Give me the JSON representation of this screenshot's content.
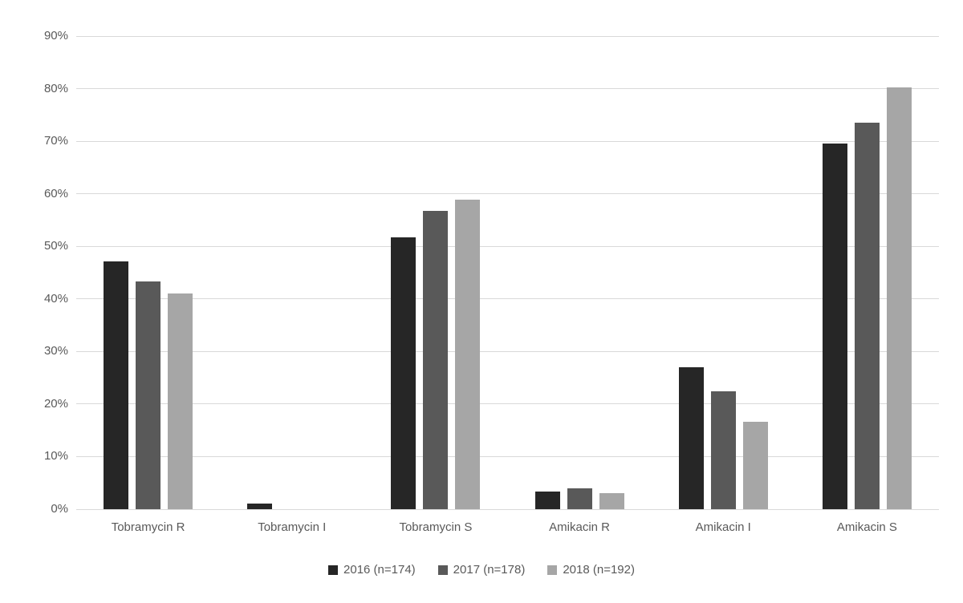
{
  "chart_data": {
    "type": "bar",
    "title": "",
    "categories": [
      "Tobramycin R",
      "Tobramycin I",
      "Tobramycin S",
      "Amikacin R",
      "Amikacin I",
      "Amikacin S"
    ],
    "series": [
      {
        "name": "2016 (n=174)",
        "color": "#262626",
        "values": [
          47.1,
          1.1,
          51.7,
          3.4,
          27.0,
          69.5
        ]
      },
      {
        "name": "2017 (n=178)",
        "color": "#595959",
        "values": [
          43.3,
          0,
          56.7,
          3.9,
          22.5,
          73.6
        ]
      },
      {
        "name": "2018 (n=192)",
        "color": "#a6a6a6",
        "values": [
          41.1,
          0,
          58.9,
          3.1,
          16.7,
          80.2
        ]
      }
    ],
    "ylim": [
      0,
      90
    ],
    "ytick_step": 10,
    "ytick_labels": [
      "0%",
      "10%",
      "20%",
      "30%",
      "40%",
      "50%",
      "60%",
      "70%",
      "80%",
      "90%"
    ],
    "grid": true,
    "legend_position": "bottom",
    "gridline_color": "#d9d9d9",
    "axis_text_color": "#595959",
    "background_color": "#ffffff"
  }
}
